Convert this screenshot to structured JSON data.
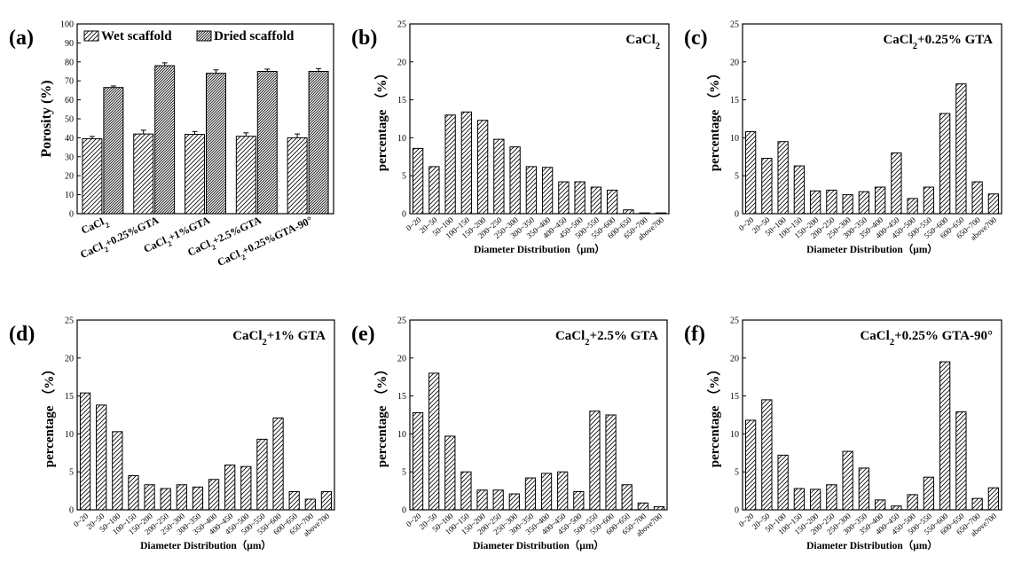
{
  "figure": {
    "pattern_stroke": "#000000",
    "background": "#ffffff"
  },
  "chart_data": [
    {
      "id": "a",
      "type": "bar",
      "panel_label": "(a)",
      "inset_title": "",
      "ylabel": "Porosity (%)",
      "xlabel": "",
      "ylim": [
        0,
        100
      ],
      "yticks": [
        0,
        10,
        20,
        30,
        40,
        50,
        60,
        70,
        80,
        90,
        100
      ],
      "categories": [
        "CaCl2",
        "CaCl2+0.25%GTA",
        "CaCl2+1%GTA",
        "CaCl2+2.5%GTA",
        "CaCl2+0.25%GTA-90°"
      ],
      "category_labels": [
        {
          "base": "CaCl",
          "sub": "2",
          "rest": ""
        },
        {
          "base": "CaCl",
          "sub": "2",
          "rest": "+0.25%GTA"
        },
        {
          "base": "CaCl",
          "sub": "2",
          "rest": "+1%GTA"
        },
        {
          "base": "CaCl",
          "sub": "2",
          "rest": "+2.5%GTA"
        },
        {
          "base": "CaCl",
          "sub": "2",
          "rest": "+0.25%GTA-90°"
        }
      ],
      "series": [
        {
          "name": "Wet scaffold",
          "pattern": "sparse",
          "values": [
            39.5,
            42,
            41.8,
            40.8,
            40
          ],
          "errors": [
            1.2,
            2,
            1.5,
            1.8,
            2
          ]
        },
        {
          "name": "Dried scaffold",
          "pattern": "dense",
          "values": [
            66.5,
            78,
            74,
            75,
            75
          ],
          "errors": [
            0.8,
            1.5,
            1.8,
            1.2,
            1.5
          ]
        }
      ],
      "legend": "top"
    },
    {
      "id": "b",
      "type": "bar",
      "panel_label": "(b)",
      "inset_title": {
        "base": "CaCl",
        "sub": "2",
        "rest": ""
      },
      "ylabel": "percentage （%）",
      "xlabel": "Diameter Distribution（μm）",
      "ylim": [
        0,
        25
      ],
      "yticks": [
        0,
        5,
        10,
        15,
        20,
        25
      ],
      "categories": [
        "0~20",
        "20~50",
        "50~100",
        "100~150",
        "150~200",
        "200~250",
        "250~300",
        "300~350",
        "350~400",
        "400~450",
        "450~500",
        "500~550",
        "550~600",
        "600~650",
        "650~700",
        "above700"
      ],
      "values": [
        8.6,
        6.2,
        13.0,
        13.4,
        12.3,
        9.8,
        8.8,
        6.2,
        6.1,
        4.2,
        4.2,
        3.5,
        3.1,
        0.5,
        0.1,
        0.1
      ]
    },
    {
      "id": "c",
      "type": "bar",
      "panel_label": "(c)",
      "inset_title": {
        "base": "CaCl",
        "sub": "2",
        "rest": "+0.25% GTA"
      },
      "ylabel": "percentage （%）",
      "xlabel": "Diameter Distribution（μm）",
      "ylim": [
        0,
        25
      ],
      "yticks": [
        0,
        5,
        10,
        15,
        20,
        25
      ],
      "categories": [
        "0~20",
        "20~50",
        "50~100",
        "100~150",
        "150~200",
        "200~250",
        "250~300",
        "300~350",
        "350~400",
        "400~450",
        "450~500",
        "500~550",
        "550~600",
        "600~650",
        "650~700",
        "above700"
      ],
      "values": [
        10.8,
        7.3,
        9.5,
        6.3,
        3.0,
        3.1,
        2.5,
        2.9,
        3.5,
        8.0,
        2.0,
        3.5,
        13.2,
        17.1,
        4.2,
        2.6
      ]
    },
    {
      "id": "d",
      "type": "bar",
      "panel_label": "(d)",
      "inset_title": {
        "base": "CaCl",
        "sub": "2",
        "rest": "+1% GTA"
      },
      "ylabel": "percentage （%）",
      "xlabel": "Diameter Distribution（μm）",
      "ylim": [
        0,
        25
      ],
      "yticks": [
        0,
        5,
        10,
        15,
        20,
        25
      ],
      "categories": [
        "0~20",
        "20~50",
        "50~100",
        "100~150",
        "150~200",
        "200~250",
        "250~300",
        "300~350",
        "350~400",
        "400~450",
        "450~500",
        "500~550",
        "550~600",
        "600~650",
        "650~700",
        "above700"
      ],
      "values": [
        15.4,
        13.8,
        10.3,
        4.5,
        3.3,
        2.8,
        3.3,
        3.0,
        4.0,
        5.9,
        5.7,
        9.3,
        12.1,
        2.4,
        1.4,
        2.4
      ]
    },
    {
      "id": "e",
      "type": "bar",
      "panel_label": "(e)",
      "inset_title": {
        "base": "CaCl",
        "sub": "2",
        "rest": "+2.5% GTA"
      },
      "ylabel": "percentage （%）",
      "xlabel": "Diameter Distribution（μm）",
      "ylim": [
        0,
        25
      ],
      "yticks": [
        0,
        5,
        10,
        15,
        20,
        25
      ],
      "categories": [
        "0~20",
        "20~50",
        "50~100",
        "100~150",
        "150~200",
        "200~250",
        "250~300",
        "300~350",
        "350~400",
        "400~450",
        "450~500",
        "500~550",
        "550~600",
        "600~650",
        "650~700",
        "above700"
      ],
      "values": [
        12.8,
        18.0,
        9.7,
        5.0,
        2.6,
        2.6,
        2.1,
        4.2,
        4.8,
        5.0,
        2.4,
        13.0,
        12.5,
        3.3,
        0.9,
        0.4
      ]
    },
    {
      "id": "f",
      "type": "bar",
      "panel_label": "(f)",
      "inset_title": {
        "base": "CaCl",
        "sub": "2",
        "rest": "+0.25% GTA-90°"
      },
      "ylabel": "percentage （%）",
      "xlabel": "Diameter Distribution（μm）",
      "ylim": [
        0,
        25
      ],
      "yticks": [
        0,
        5,
        10,
        15,
        20,
        25
      ],
      "categories": [
        "0~20",
        "20~50",
        "50~100",
        "100~150",
        "150~200",
        "200~250",
        "250~300",
        "300~350",
        "350~400",
        "400~450",
        "450~500",
        "500~550",
        "550~600",
        "600~650",
        "650~700",
        "above700"
      ],
      "values": [
        11.8,
        14.5,
        7.2,
        2.8,
        2.7,
        3.3,
        7.7,
        5.5,
        1.3,
        0.5,
        2.0,
        4.3,
        19.5,
        12.9,
        1.5,
        2.9
      ]
    }
  ]
}
